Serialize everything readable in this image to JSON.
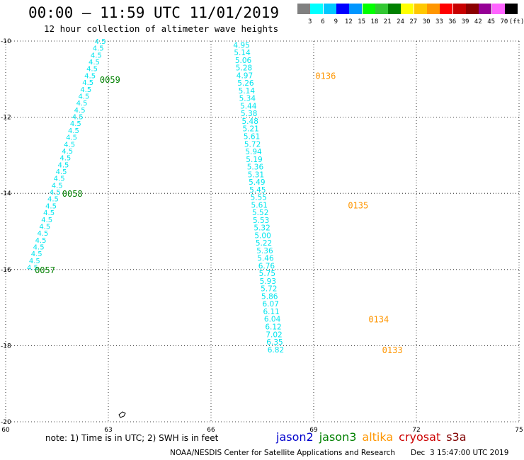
{
  "header": {
    "title": "00:00 – 11:59 UTC 11/01/2019",
    "subtitle": "12 hour collection of altimeter wave heights"
  },
  "color_scale": {
    "colors": [
      "#808080",
      "#00ffff",
      "#00c8ff",
      "#0000ff",
      "#0096ff",
      "#00ff00",
      "#32c832",
      "#008000",
      "#ffff00",
      "#ffc800",
      "#ff9600",
      "#ff0000",
      "#c80000",
      "#8b0000",
      "#960096",
      "#ff64ff",
      "#000000"
    ],
    "labels": [
      "3",
      "6",
      "9",
      "12",
      "15",
      "18",
      "21",
      "24",
      "27",
      "30",
      "33",
      "36",
      "39",
      "42",
      "45",
      "70",
      "(ft)"
    ]
  },
  "footer": {
    "note": "note: 1) Time is in UTC; 2) SWH is in feet",
    "credit": "NOAA/NESDIS Center for Satellite Applications and Research",
    "timestamp": "Dec  3 15:47:00 UTC 2019",
    "satellites": [
      {
        "name": "jason2",
        "color": "#0000cc"
      },
      {
        "name": "jason3",
        "color": "#008000"
      },
      {
        "name": "altika",
        "color": "#ff9600"
      },
      {
        "name": "cryosat",
        "color": "#cc0000"
      },
      {
        "name": "s3a",
        "color": "#800000"
      }
    ]
  },
  "chart_data": {
    "type": "scatter",
    "xlim": [
      60,
      75
    ],
    "ylim": [
      -20,
      -10
    ],
    "x_ticks": [
      "60",
      "63",
      "66",
      "69",
      "72",
      "75"
    ],
    "y_ticks": [
      "-10",
      "-12",
      "-14",
      "-16",
      "-18",
      "-20"
    ],
    "grid": true,
    "tracks": [
      {
        "color": "#00e5ee",
        "points": [
          {
            "x": 66.65,
            "y": -10.1,
            "v": "4.95"
          },
          {
            "x": 66.67,
            "y": -10.3,
            "v": "5.14"
          },
          {
            "x": 66.7,
            "y": -10.5,
            "v": "5.06"
          },
          {
            "x": 66.72,
            "y": -10.7,
            "v": "5.28"
          },
          {
            "x": 66.74,
            "y": -10.9,
            "v": "4.97"
          },
          {
            "x": 66.77,
            "y": -11.1,
            "v": "5.26"
          },
          {
            "x": 66.8,
            "y": -11.3,
            "v": "5.14"
          },
          {
            "x": 66.82,
            "y": -11.5,
            "v": "5.34"
          },
          {
            "x": 66.85,
            "y": -11.7,
            "v": "5.44"
          },
          {
            "x": 66.87,
            "y": -11.9,
            "v": "5.38"
          },
          {
            "x": 66.9,
            "y": -12.1,
            "v": "5.48"
          },
          {
            "x": 66.92,
            "y": -12.3,
            "v": "5.21"
          },
          {
            "x": 66.95,
            "y": -12.5,
            "v": "5.61"
          },
          {
            "x": 66.97,
            "y": -12.7,
            "v": "5.72"
          },
          {
            "x": 67.0,
            "y": -12.9,
            "v": "5.94"
          },
          {
            "x": 67.02,
            "y": -13.1,
            "v": "5.19"
          },
          {
            "x": 67.05,
            "y": -13.3,
            "v": "5.36"
          },
          {
            "x": 67.07,
            "y": -13.5,
            "v": "5.31"
          },
          {
            "x": 67.1,
            "y": -13.7,
            "v": "5.49"
          },
          {
            "x": 67.12,
            "y": -13.9,
            "v": "5.45"
          },
          {
            "x": 67.15,
            "y": -14.1,
            "v": "5.55"
          },
          {
            "x": 67.17,
            "y": -14.3,
            "v": "5.61"
          },
          {
            "x": 67.2,
            "y": -14.5,
            "v": "5.52"
          },
          {
            "x": 67.22,
            "y": -14.7,
            "v": "5.53"
          },
          {
            "x": 67.25,
            "y": -14.9,
            "v": "5.32"
          },
          {
            "x": 67.27,
            "y": -15.1,
            "v": "5.00"
          },
          {
            "x": 67.3,
            "y": -15.3,
            "v": "5.22"
          },
          {
            "x": 67.33,
            "y": -15.5,
            "v": "5.36"
          },
          {
            "x": 67.35,
            "y": -15.7,
            "v": "5.46"
          },
          {
            "x": 67.38,
            "y": -15.9,
            "v": "6.76"
          },
          {
            "x": 67.4,
            "y": -16.1,
            "v": "5.75"
          },
          {
            "x": 67.42,
            "y": -16.3,
            "v": "5.93"
          },
          {
            "x": 67.45,
            "y": -16.5,
            "v": "5.72"
          },
          {
            "x": 67.47,
            "y": -16.7,
            "v": "5.86"
          },
          {
            "x": 67.5,
            "y": -16.9,
            "v": "6.07"
          },
          {
            "x": 67.52,
            "y": -17.1,
            "v": "6.11"
          },
          {
            "x": 67.55,
            "y": -17.3,
            "v": "6.04"
          },
          {
            "x": 67.58,
            "y": -17.5,
            "v": "6.12"
          },
          {
            "x": 67.6,
            "y": -17.7,
            "v": "7.02"
          },
          {
            "x": 67.62,
            "y": -17.9,
            "v": "6.35"
          },
          {
            "x": 67.65,
            "y": -18.1,
            "v": "6.82"
          }
        ]
      }
    ],
    "time_labels": [
      {
        "x": 69.05,
        "y": -10.9,
        "text": "0136",
        "color": "#ff9600"
      },
      {
        "x": 70.0,
        "y": -14.3,
        "text": "0135",
        "color": "#ff9600"
      },
      {
        "x": 70.6,
        "y": -17.3,
        "text": "0134",
        "color": "#ff9600"
      },
      {
        "x": 71.0,
        "y": -18.1,
        "text": "0133",
        "color": "#ff9600"
      },
      {
        "x": 62.75,
        "y": -11.0,
        "text": "0059",
        "color": "#008000"
      },
      {
        "x": 61.65,
        "y": -14.0,
        "text": "0058",
        "color": "#008000"
      },
      {
        "x": 60.85,
        "y": -16.0,
        "text": "0057",
        "color": "#008000"
      }
    ]
  }
}
